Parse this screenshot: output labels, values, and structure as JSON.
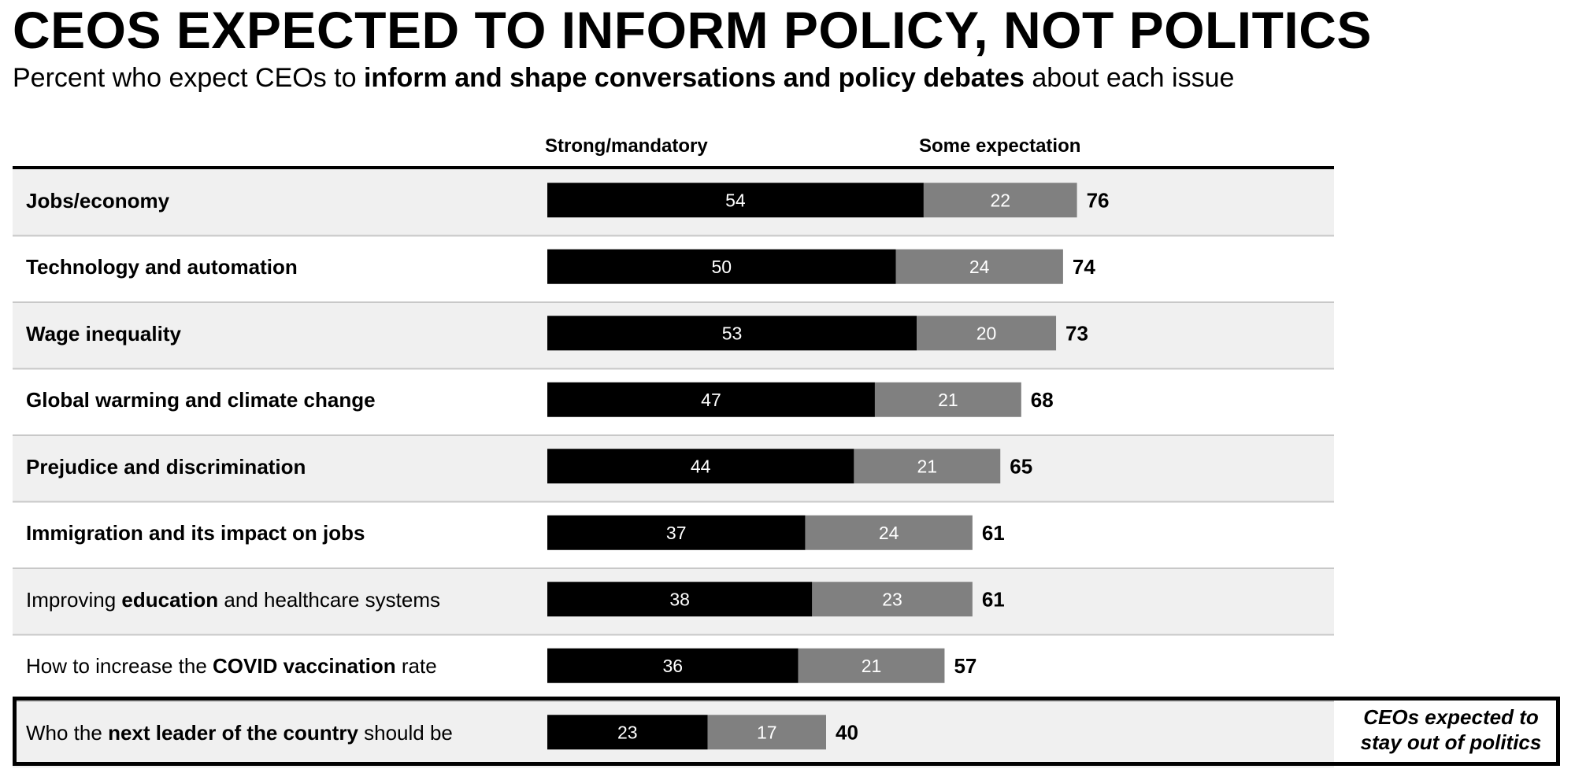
{
  "header": {
    "title": "CEOS EXPECTED TO INFORM POLICY, NOT POLITICS",
    "subtitle_pre": "Percent who expect CEOs to ",
    "subtitle_bold": "inform and shape conversations and policy debates",
    "subtitle_post": " about each issue"
  },
  "colors": {
    "strong": "#000000",
    "some": "#808080",
    "row_shade": "#f0f0f0",
    "divider": "#c8c8c8"
  },
  "chart_data": {
    "type": "bar",
    "orientation": "horizontal",
    "stacked": true,
    "categories": [
      "Jobs/economy",
      "Technology and automation",
      "Wage inequality",
      "Global warming and climate change",
      "Prejudice and discrimination",
      "Immigration and its impact on jobs",
      "Improving education and healthcare systems",
      "How to increase the COVID vaccination rate",
      "Who the next leader of the country should be"
    ],
    "series": [
      {
        "name": "Strong/mandatory",
        "values": [
          54,
          50,
          53,
          47,
          44,
          37,
          38,
          36,
          23
        ]
      },
      {
        "name": "Some expectation",
        "values": [
          22,
          24,
          20,
          21,
          21,
          24,
          23,
          21,
          17
        ]
      }
    ],
    "totals": [
      76,
      74,
      73,
      68,
      65,
      61,
      61,
      57,
      40
    ],
    "xlim": [
      0,
      100
    ],
    "legend": "top",
    "grid": false,
    "category_labels": [
      {
        "pre": "",
        "bold": "Jobs/economy",
        "post": ""
      },
      {
        "pre": "",
        "bold": "Technology and automation",
        "post": ""
      },
      {
        "pre": "",
        "bold": "Wage inequality",
        "post": ""
      },
      {
        "pre": "",
        "bold": "Global warming and climate change",
        "post": ""
      },
      {
        "pre": "",
        "bold": "Prejudice and discrimination",
        "post": ""
      },
      {
        "pre": "",
        "bold": "Immigration and its impact on jobs",
        "post": ""
      },
      {
        "pre": "Improving ",
        "bold": "education",
        "post": " and healthcare systems"
      },
      {
        "pre": "How to increase the ",
        "bold": "COVID vaccination",
        "post": " rate"
      },
      {
        "pre": "Who the ",
        "bold": "next leader of the country",
        "post": " should be"
      }
    ],
    "annotation": {
      "line1": "CEOs expected to",
      "line2": "stay out of politics"
    }
  }
}
